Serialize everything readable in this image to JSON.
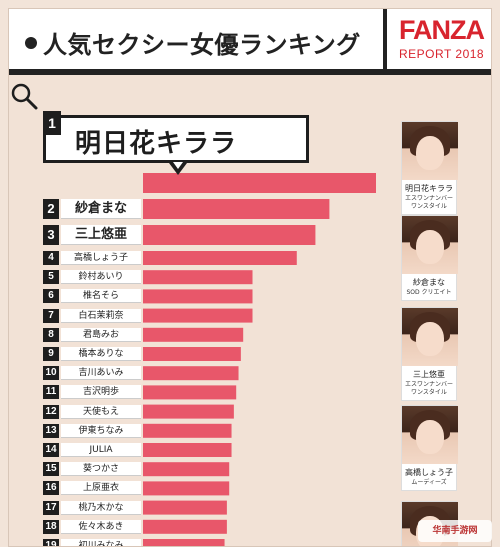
{
  "header": {
    "title": "人気セクシー女優ランキング",
    "brand": "FANZA",
    "report": "REPORT 2018"
  },
  "colors": {
    "bar": "#e8576a",
    "background": "#f2e2d6",
    "rank_box": "#1e1e1e",
    "brand": "#d8242e"
  },
  "top1": {
    "rank": "1",
    "name": "明日花キララ",
    "icon": "search-icon"
  },
  "chart_data": {
    "type": "bar",
    "orientation": "horizontal",
    "categories": [
      "明日花キララ",
      "紗倉まな",
      "三上悠亜",
      "高橋しょう子",
      "鈴村あいり",
      "椎名そら",
      "白石茉莉奈",
      "君島みお",
      "橋本ありな",
      "吉川あいみ",
      "吉沢明歩",
      "天使もえ",
      "伊東ちなみ",
      "JULIA",
      "葵つかさ",
      "上原亜衣",
      "桃乃木かな",
      "佐々木あき",
      "初川みなみ"
    ],
    "ranks": [
      "1",
      "2",
      "3",
      "4",
      "5",
      "6",
      "7",
      "8",
      "9",
      "10",
      "11",
      "12",
      "13",
      "14",
      "15",
      "16",
      "17",
      "18",
      "19"
    ],
    "values": [
      100,
      80,
      74,
      66,
      47,
      47,
      47,
      43,
      42,
      41,
      40,
      39,
      38,
      38,
      37,
      37,
      36,
      36,
      35
    ],
    "xlim": [
      0,
      100
    ],
    "grid": false,
    "legend": "none"
  },
  "cards": [
    {
      "name": "明日花キララ",
      "studio": "エスワンナンバーワンスタイル"
    },
    {
      "name": "紗倉まな",
      "studio": "SOD クリエイト"
    },
    {
      "name": "三上悠亜",
      "studio": "エスワンナンバーワンスタイル"
    },
    {
      "name": "高橋しょう子",
      "studio": "ムーディーズ"
    },
    {
      "name": "",
      "studio": ""
    }
  ],
  "watermark": "华南手游网"
}
